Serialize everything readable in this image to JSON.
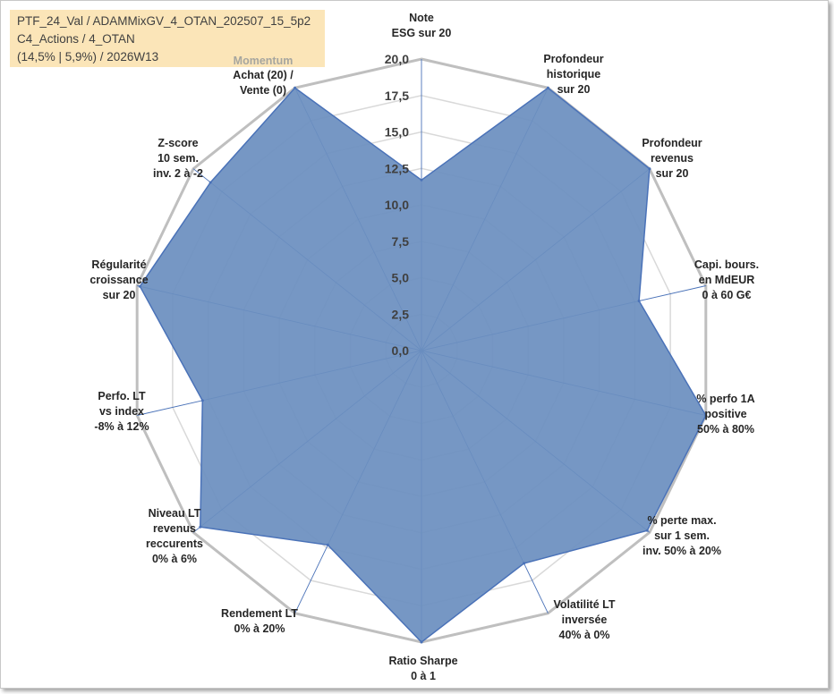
{
  "info": {
    "line1": "PTF_24_Val / ADAMMixGV_4_OTAN_202507_15_5p2",
    "line2": "C4_Actions / 4_OTAN",
    "line3": "(14,5% | 5,9%) / 2026W13"
  },
  "chart_data": {
    "type": "radar",
    "title": "",
    "rlim": [
      0,
      20
    ],
    "tick_step": 2.5,
    "grid": true,
    "tick_labels": [
      "0,0",
      "2,5",
      "5,0",
      "7,5",
      "10,0",
      "12,5",
      "15,0",
      "17,5",
      "20,0"
    ],
    "annotation": "Momentum",
    "fill_color": "#6c8fbf",
    "line_color": "#4a72b8",
    "grid_color": "#d9d9d9",
    "outer_color": "#bfbfbf",
    "axes": [
      [
        "Note",
        "ESG sur 20"
      ],
      [
        "Profondeur",
        "historique",
        "sur 20"
      ],
      [
        "Profondeur",
        "revenus",
        "sur 20"
      ],
      [
        "Capi. bours.",
        "en MdEUR",
        "0 à 60 G€"
      ],
      [
        "% perfo 1A",
        "positive",
        "50% à 80%"
      ],
      [
        "% perte max.",
        "sur 1 sem.",
        "inv. 50% à 20%"
      ],
      [
        "Volatilité LT",
        "inversée",
        "40% à 0%"
      ],
      [
        "Ratio Sharpe",
        "0 à 1"
      ],
      [
        "Rendement LT",
        "0% à 20%"
      ],
      [
        "Niveau LT",
        "revenus",
        "reccurents",
        "0% à 6%"
      ],
      [
        "Perfo. LT",
        "vs index",
        "-8% à 12%"
      ],
      [
        "Régularité",
        "croissance",
        "sur 20"
      ],
      [
        "Z-score",
        "10 sem.",
        "inv. 2 à -2"
      ],
      [
        "Achat (20) /",
        "Vente (0)"
      ]
    ],
    "series": [
      {
        "values": [
          11.7,
          20,
          20,
          15.3,
          20,
          19.8,
          16.2,
          20,
          14.8,
          19.4,
          15.4,
          19.8,
          18.5,
          20
        ]
      }
    ]
  }
}
